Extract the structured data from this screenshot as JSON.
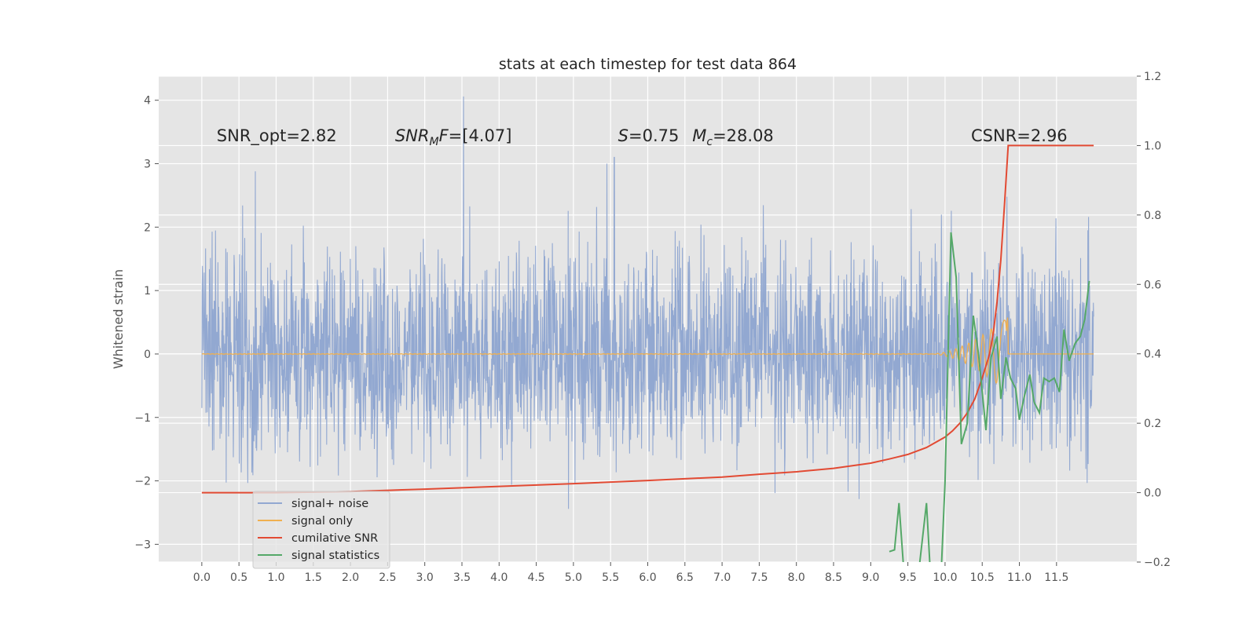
{
  "chart_data": {
    "type": "line",
    "title": "stats at each timestep for test data 864",
    "ylabel": "Whitened strain",
    "xlim": [
      -0.58,
      12.58
    ],
    "ylim": [
      -3.28,
      4.38
    ],
    "y2lim": [
      -0.2,
      1.2
    ],
    "xticks": [
      0.0,
      0.5,
      1.0,
      1.5,
      2.0,
      2.5,
      3.0,
      3.5,
      4.0,
      4.5,
      5.0,
      5.5,
      6.0,
      6.5,
      7.0,
      7.5,
      8.0,
      8.5,
      9.0,
      9.5,
      10.0,
      10.5,
      11.0,
      11.5
    ],
    "xtick_labels": [
      "0.0",
      "0.5",
      "1.0",
      "1.5",
      "2.0",
      "2.5",
      "3.0",
      "3.5",
      "4.0",
      "4.5",
      "5.0",
      "5.5",
      "6.0",
      "6.5",
      "7.0",
      "7.5",
      "8.0",
      "8.5",
      "9.0",
      "9.5",
      "10.0",
      "10.5",
      "11.0",
      "11.5"
    ],
    "yticks": [
      -3,
      -2,
      -1,
      0,
      1,
      2,
      3,
      4
    ],
    "ytick_labels": [
      "−3",
      "−2",
      "−1",
      "0",
      "1",
      "2",
      "3",
      "4"
    ],
    "y2ticks": [
      -0.2,
      0.0,
      0.2,
      0.4,
      0.6,
      0.8,
      1.0,
      1.2
    ],
    "y2tick_labels": [
      "−0.2",
      "0.0",
      "0.2",
      "0.4",
      "0.6",
      "0.8",
      "1.0",
      "1.2"
    ],
    "grid": true,
    "legend_position": "lower-left",
    "annotations": [
      {
        "id": "snr-opt",
        "text": "SNR_opt=2.82",
        "x": 0.2,
        "y": 3.35
      },
      {
        "id": "snr-mf",
        "text": "F=[4.07]",
        "math": "SNR",
        "sub": "M",
        "x": 2.6,
        "y": 3.35
      },
      {
        "id": "s-val",
        "text": "=0.75",
        "math": "S",
        "x": 5.6,
        "y": 3.35
      },
      {
        "id": "mc-val",
        "text": "=28.08",
        "math": "M",
        "sub": "c",
        "x": 6.6,
        "y": 3.35
      },
      {
        "id": "csnr",
        "text": "CSNR=2.96",
        "x": 10.35,
        "y": 3.35
      }
    ],
    "series": [
      {
        "name": "signal+ noise",
        "color": "#92a8d1",
        "axis": "left",
        "kind": "noise",
        "x_range": [
          0.0,
          12.0
        ],
        "samples": 2600,
        "std": 0.82,
        "spikes": [
          [
            3.52,
            4.06
          ],
          [
            5.45,
            3.0
          ],
          [
            5.55,
            3.1
          ],
          [
            0.72,
            2.88
          ],
          [
            11.92,
            1.95
          ]
        ],
        "envelope_note": ""
      },
      {
        "name": "signal only",
        "color": "#f0b050",
        "axis": "left",
        "kind": "chirp",
        "x_range": [
          0.0,
          10.85
        ],
        "peak_amplitude": 0.62,
        "onset": 9.8
      },
      {
        "name": "cumilative SNR",
        "color": "#e24a33",
        "axis": "right",
        "x": [
          0.0,
          1.0,
          2.0,
          3.0,
          4.0,
          5.0,
          6.0,
          7.0,
          7.5,
          8.0,
          8.5,
          9.0,
          9.25,
          9.5,
          9.75,
          10.0,
          10.1,
          10.2,
          10.3,
          10.4,
          10.5,
          10.6,
          10.65,
          10.7,
          10.75,
          10.8,
          10.85,
          10.9,
          11.0,
          11.5,
          12.0
        ],
        "values": [
          0.0,
          0.0,
          0.003,
          0.01,
          0.018,
          0.026,
          0.035,
          0.045,
          0.053,
          0.06,
          0.07,
          0.085,
          0.097,
          0.11,
          0.13,
          0.16,
          0.178,
          0.2,
          0.23,
          0.27,
          0.33,
          0.4,
          0.46,
          0.55,
          0.67,
          0.83,
          1.0,
          1.0,
          1.0,
          1.0,
          1.0
        ]
      },
      {
        "name": "signal statistics",
        "color": "#55a868",
        "axis": "right",
        "x": [
          9.25,
          9.32,
          9.38,
          9.45,
          9.5,
          9.55,
          9.65,
          9.75,
          9.82,
          9.88,
          9.95,
          10.0,
          10.08,
          10.15,
          10.22,
          10.3,
          10.38,
          10.45,
          10.55,
          10.62,
          10.7,
          10.75,
          10.82,
          10.88,
          10.95,
          11.0,
          11.07,
          11.14,
          11.2,
          11.27,
          11.33,
          11.4,
          11.47,
          11.54,
          11.6,
          11.67,
          11.75,
          11.82,
          11.88,
          11.94
        ],
        "values": [
          -0.17,
          -0.165,
          -0.03,
          -0.24,
          -0.26,
          -0.24,
          -0.22,
          -0.03,
          -0.3,
          -0.25,
          -0.22,
          0.03,
          0.75,
          0.62,
          0.14,
          0.2,
          0.51,
          0.4,
          0.18,
          0.39,
          0.45,
          0.27,
          0.39,
          0.33,
          0.3,
          0.21,
          0.28,
          0.34,
          0.26,
          0.23,
          0.33,
          0.32,
          0.33,
          0.29,
          0.47,
          0.38,
          0.43,
          0.45,
          0.5,
          0.61
        ]
      }
    ]
  },
  "legend": {
    "items": [
      {
        "label": "signal+ noise",
        "color": "#92a8d1"
      },
      {
        "label": "signal only",
        "color": "#f0b050"
      },
      {
        "label": "cumilative SNR",
        "color": "#e24a33"
      },
      {
        "label": "signal statistics",
        "color": "#55a868"
      }
    ]
  }
}
